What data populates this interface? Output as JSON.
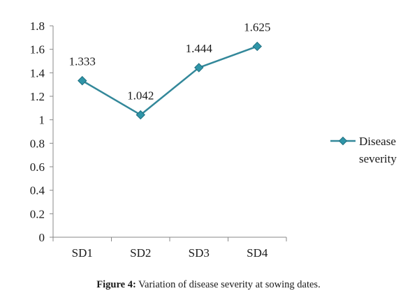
{
  "chart_data": {
    "type": "line",
    "categories": [
      "SD1",
      "SD2",
      "SD3",
      "SD4"
    ],
    "series": [
      {
        "name": "Disease severity",
        "values": [
          1.333,
          1.042,
          1.444,
          1.625
        ],
        "data_labels": [
          "1.333",
          "1.042",
          "1.444",
          "1.625"
        ]
      }
    ],
    "ylim": [
      0,
      1.8
    ],
    "yticks": [
      0,
      0.2,
      0.4,
      0.6,
      0.8,
      1,
      1.2,
      1.4,
      1.6,
      1.8
    ],
    "ytick_labels": [
      "0",
      "0.2",
      "0.4",
      "0.6",
      "0.8",
      "1",
      "1.2",
      "1.4",
      "1.6",
      "1.8"
    ],
    "grid": false,
    "legend_position": "right",
    "legend_lines": [
      "Disease",
      "severity"
    ],
    "colors": {
      "line": "#33889a",
      "marker": "#2f95a8",
      "marker_edge": "#1f6f80",
      "axis": "#888888"
    }
  },
  "caption": {
    "label": "Figure 4:",
    "text": " Variation of disease severity at sowing dates."
  }
}
